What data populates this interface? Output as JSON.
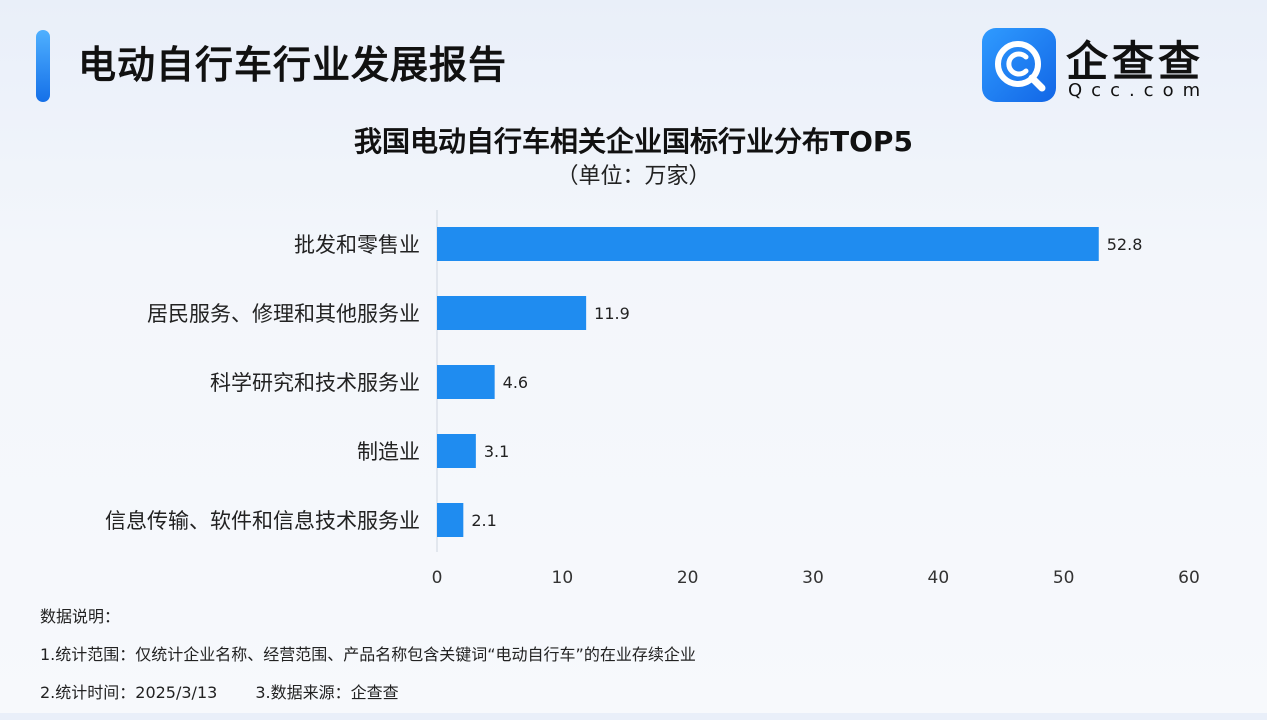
{
  "header": {
    "title": "电动自行车行业发展报告"
  },
  "logo": {
    "cn": "企查查",
    "en": "Qcc.com"
  },
  "chart_data": {
    "type": "bar",
    "orientation": "horizontal",
    "title": "我国电动自行车相关企业国标行业分布TOP5",
    "subtitle": "（单位：万家）",
    "categories": [
      "批发和零售业",
      "居民服务、修理和其他服务业",
      "科学研究和技术服务业",
      "制造业",
      "信息传输、软件和信息技术服务业"
    ],
    "values": [
      52.8,
      11.9,
      4.6,
      3.1,
      2.1
    ],
    "value_labels": [
      "52.8",
      "11.9",
      "4.6",
      "3.1",
      "2.1"
    ],
    "xlim": [
      0,
      60
    ],
    "xticks": [
      "0",
      "10",
      "20",
      "30",
      "40",
      "50",
      "60"
    ],
    "grid": false,
    "bar_color": "#1f8cf0"
  },
  "notes": {
    "heading": "数据说明：",
    "line1": "1.统计范围：仅统计企业名称、经营范围、产品名称包含关键词“电动自行车”的在业存续企业",
    "line2a": "2.统计时间：2025/3/13",
    "line2b": "3.数据来源：企查查"
  }
}
